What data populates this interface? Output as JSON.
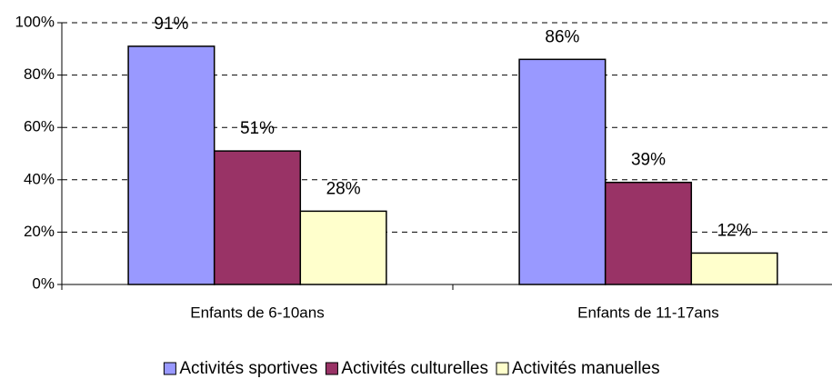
{
  "chart_data": {
    "type": "bar",
    "categories": [
      "Enfants de 6-10ans",
      "Enfants de 11-17ans"
    ],
    "series": [
      {
        "name": "Activités sportives",
        "color": "#9999ff",
        "values": [
          91,
          86
        ],
        "value_labels": [
          "91%",
          "86%"
        ]
      },
      {
        "name": "Activités culturelles",
        "color": "#993366",
        "values": [
          51,
          39
        ],
        "value_labels": [
          "51%",
          "39%"
        ]
      },
      {
        "name": "Activités manuelles",
        "color": "#ffffcc",
        "values": [
          28,
          12
        ],
        "value_labels": [
          "28%",
          "12%"
        ]
      }
    ],
    "ylim": [
      0,
      100
    ],
    "yticks": [
      {
        "value": 0,
        "label": "0%"
      },
      {
        "value": 20,
        "label": "20%"
      },
      {
        "value": 40,
        "label": "40%"
      },
      {
        "value": 60,
        "label": "60%"
      },
      {
        "value": 80,
        "label": "80%"
      },
      {
        "value": 100,
        "label": "100%"
      }
    ],
    "grid": true,
    "legend": "bottom"
  }
}
